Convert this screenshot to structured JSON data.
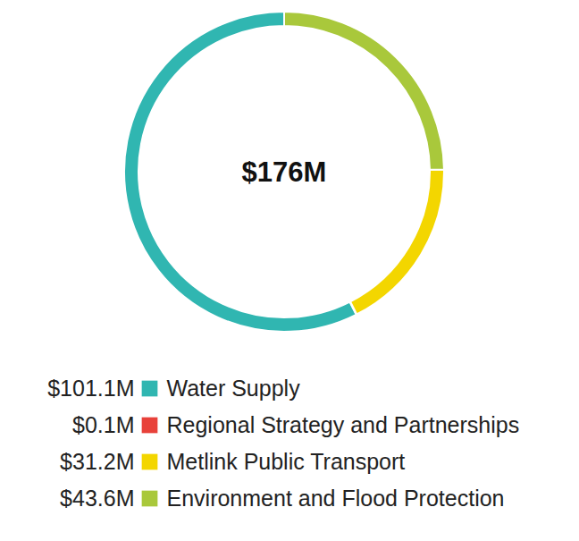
{
  "chart_data": {
    "type": "donut",
    "center_label": "$176M",
    "categories": [
      "Water Supply",
      "Regional Strategy and Partnerships",
      "Metlink Public Transport",
      "Environment and Flood Protection"
    ],
    "values": [
      101.1,
      0.1,
      31.2,
      43.6
    ],
    "value_labels": [
      "$101.1M",
      "$0.1M",
      "$31.2M",
      "$43.6M"
    ],
    "colors": [
      "#30b6b1",
      "#e8413a",
      "#f3d600",
      "#a9c83b"
    ],
    "legend": "bottom"
  }
}
